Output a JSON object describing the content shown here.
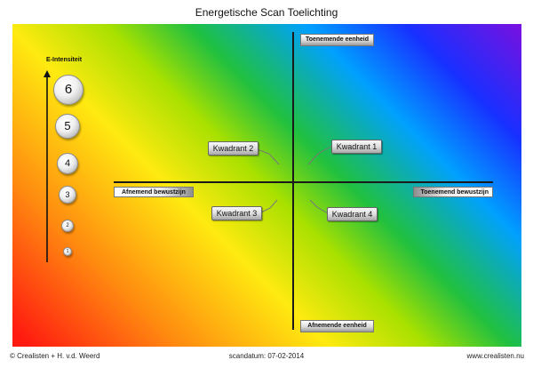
{
  "title": "Energetische Scan Toelichting",
  "axes": {
    "top": "Toenemende eenheid",
    "bottom": "Afnemende eenheid",
    "left": "Afnemend bewustzijn",
    "right": "Toenemend bewustzijn"
  },
  "quadrants": [
    "Kwadrant 1",
    "Kwadrant 2",
    "Kwadrant 3",
    "Kwadrant 4"
  ],
  "scale": {
    "label": "E-Intensiteit",
    "levels": [
      "6",
      "5",
      "4",
      "3",
      "2",
      "1"
    ]
  },
  "footer": {
    "left": "© Crealisten + H. v.d. Weerd",
    "center": "scandatum: 07-02-2014",
    "right": "www.crealisten.nu"
  },
  "colors": {
    "gradient": [
      "#ff1a10",
      "#ff8a10",
      "#ffea10",
      "#a8e000",
      "#20c040",
      "#00a0ff",
      "#1830ff",
      "#7a10e0"
    ],
    "axis": "#1a1a1a"
  }
}
